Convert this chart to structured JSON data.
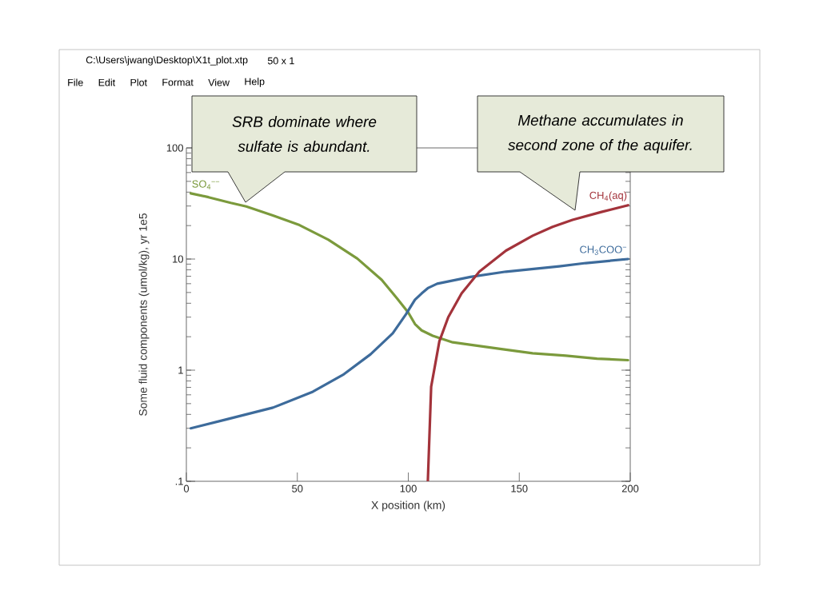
{
  "chart_data": {
    "type": "line",
    "title": "C:\\Users\\jwang\\Desktop\\X1t_plot.xtp",
    "subtitle": "50 x 1",
    "xlabel": "X position (km)",
    "ylabel": "Some fluid components (umol/kg), yr 1e5",
    "xlim": [
      0,
      200
    ],
    "ylim": [
      0.1,
      100
    ],
    "xticks": [
      0,
      50,
      100,
      150,
      200
    ],
    "yticks": [
      {
        "value": 0.1,
        "label": ".1"
      },
      1,
      10,
      100
    ],
    "log": "y",
    "line_style": "solid",
    "series": [
      {
        "name": "SO$_{4}$$^{−−}$",
        "color": "#7b9a3c",
        "x": [
          2,
          10,
          20,
          27,
          39,
          51,
          64,
          77,
          88,
          95,
          100,
          103,
          106,
          111,
          120,
          129,
          142,
          156,
          171,
          185,
          199
        ],
        "values": [
          39,
          36,
          32,
          29.7,
          24.7,
          20.2,
          14.9,
          10.1,
          6.5,
          4.4,
          3.3,
          2.6,
          2.28,
          2.04,
          1.78,
          1.68,
          1.55,
          1.42,
          1.35,
          1.27,
          1.23
        ]
      },
      {
        "name": "CH$_{3}$COO$^{−}$",
        "color": "#3d6b9b",
        "x": [
          2,
          18,
          39,
          57,
          71,
          83,
          93,
          99,
          103,
          106,
          109,
          113,
          128,
          144,
          168,
          180,
          199
        ],
        "values": [
          0.3,
          0.36,
          0.46,
          0.64,
          0.92,
          1.39,
          2.15,
          3.2,
          4.3,
          4.9,
          5.5,
          6.0,
          6.9,
          7.7,
          8.6,
          9.2,
          10
        ]
      },
      {
        "name": "CH$_{4}$(aq)",
        "color": "#a3333b",
        "x": [
          108.8,
          110.3,
          114,
          118,
          124,
          132,
          144,
          156,
          165,
          174,
          187,
          199
        ],
        "values": [
          0.1,
          0.71,
          1.82,
          3.0,
          4.9,
          7.7,
          11.9,
          16.2,
          19.5,
          22.5,
          26.5,
          30.5
        ]
      }
    ],
    "annotations": [
      "SRB dominate where sulfate is abundant.",
      "Methane accumulates in second zone of the aquifer.",
      "File",
      "Edit",
      "Plot",
      "Format",
      "View",
      "Help"
    ]
  }
}
